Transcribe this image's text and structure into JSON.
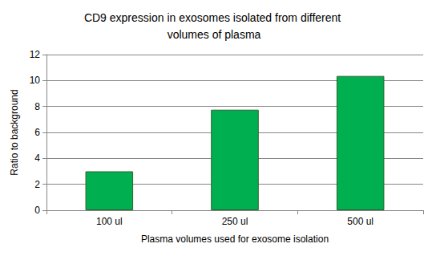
{
  "chart_data": {
    "type": "bar",
    "title": "CD9 expression in exosomes isolated from different volumes of plasma",
    "x_label": "Plasma volumes used for exosome isolation",
    "y_label": "Ratio to background",
    "categories": [
      "100 ul",
      "250 ul",
      "500 ul"
    ],
    "values": [
      3.0,
      7.75,
      10.35
    ],
    "color": "#00b050",
    "ylim": [
      0,
      12
    ],
    "yticks": [
      0,
      2,
      4,
      6,
      8,
      10,
      12
    ],
    "grid": true
  }
}
